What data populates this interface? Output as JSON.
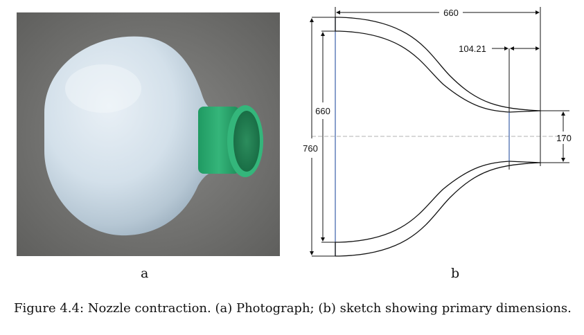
{
  "figure": {
    "panel_a_label": "a",
    "panel_b_label": "b",
    "caption": "Figure 4.4: Nozzle contraction. (a) Photograph; (b) sketch showing primary dimensions."
  },
  "sketch": {
    "dimensions": {
      "length": "660",
      "outlet_length": "104.21",
      "inner_inlet_diameter": "660",
      "outer_inlet_diameter": "760",
      "outlet_diameter": "170"
    }
  }
}
